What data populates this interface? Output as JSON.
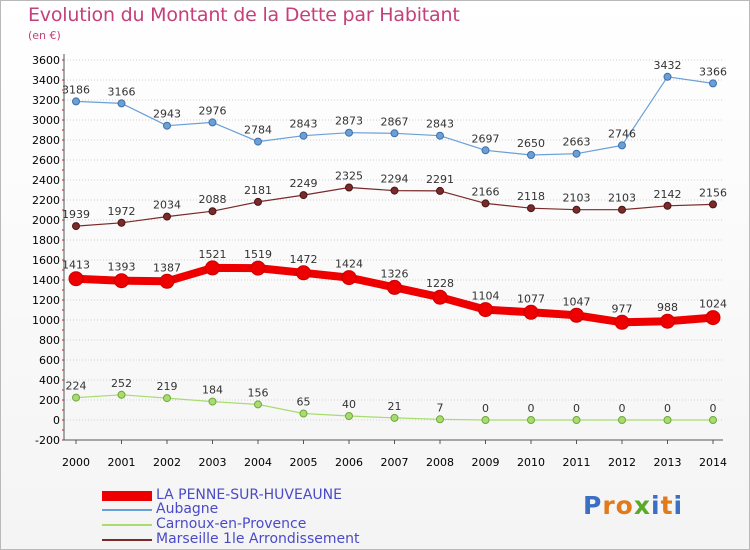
{
  "header": {
    "title": "Evolution du Montant de la Dette par Habitant",
    "unit": "(en €)"
  },
  "chart_data": {
    "type": "line",
    "title": "Evolution du Montant de la Dette par Habitant",
    "ylabel": "(en €)",
    "xlabel": "",
    "ylim": [
      -200,
      3600
    ],
    "y_ticks": [
      -200,
      0,
      200,
      400,
      600,
      800,
      1000,
      1200,
      1400,
      1600,
      1800,
      2000,
      2200,
      2400,
      2600,
      2800,
      3000,
      3200,
      3400,
      3600
    ],
    "x": [
      "2000",
      "2001",
      "2002",
      "2003",
      "2004",
      "2005",
      "2006",
      "2007",
      "2008",
      "2009",
      "2010",
      "2011",
      "2012",
      "2013",
      "2014"
    ],
    "grid": "horizontal dotted",
    "legend_position": "bottom-left",
    "series": [
      {
        "name": "LA PENNE-SUR-HUVEAUNE",
        "color": "#ee0000",
        "values": [
          1413,
          1393,
          1387,
          1521,
          1519,
          1472,
          1424,
          1326,
          1228,
          1104,
          1077,
          1047,
          977,
          988,
          1024
        ]
      },
      {
        "name": "Aubagne",
        "color": "#6a9fd8",
        "values": [
          3186,
          3166,
          2943,
          2976,
          2784,
          2843,
          2873,
          2867,
          2843,
          2697,
          2650,
          2663,
          2746,
          3432,
          3366
        ]
      },
      {
        "name": "Carnoux-en-Provence",
        "color": "#a8dc70",
        "values": [
          224,
          252,
          219,
          184,
          156,
          65,
          40,
          21,
          7,
          0,
          0,
          0,
          0,
          0,
          0
        ]
      },
      {
        "name": "Marseille 1le  Arrondissement",
        "color": "#7a2a2a",
        "values": [
          1939,
          1972,
          2034,
          2088,
          2181,
          2249,
          2325,
          2294,
          2291,
          2166,
          2118,
          2103,
          2103,
          2142,
          2156
        ]
      }
    ]
  },
  "logo": {
    "text": "Proxiti"
  }
}
